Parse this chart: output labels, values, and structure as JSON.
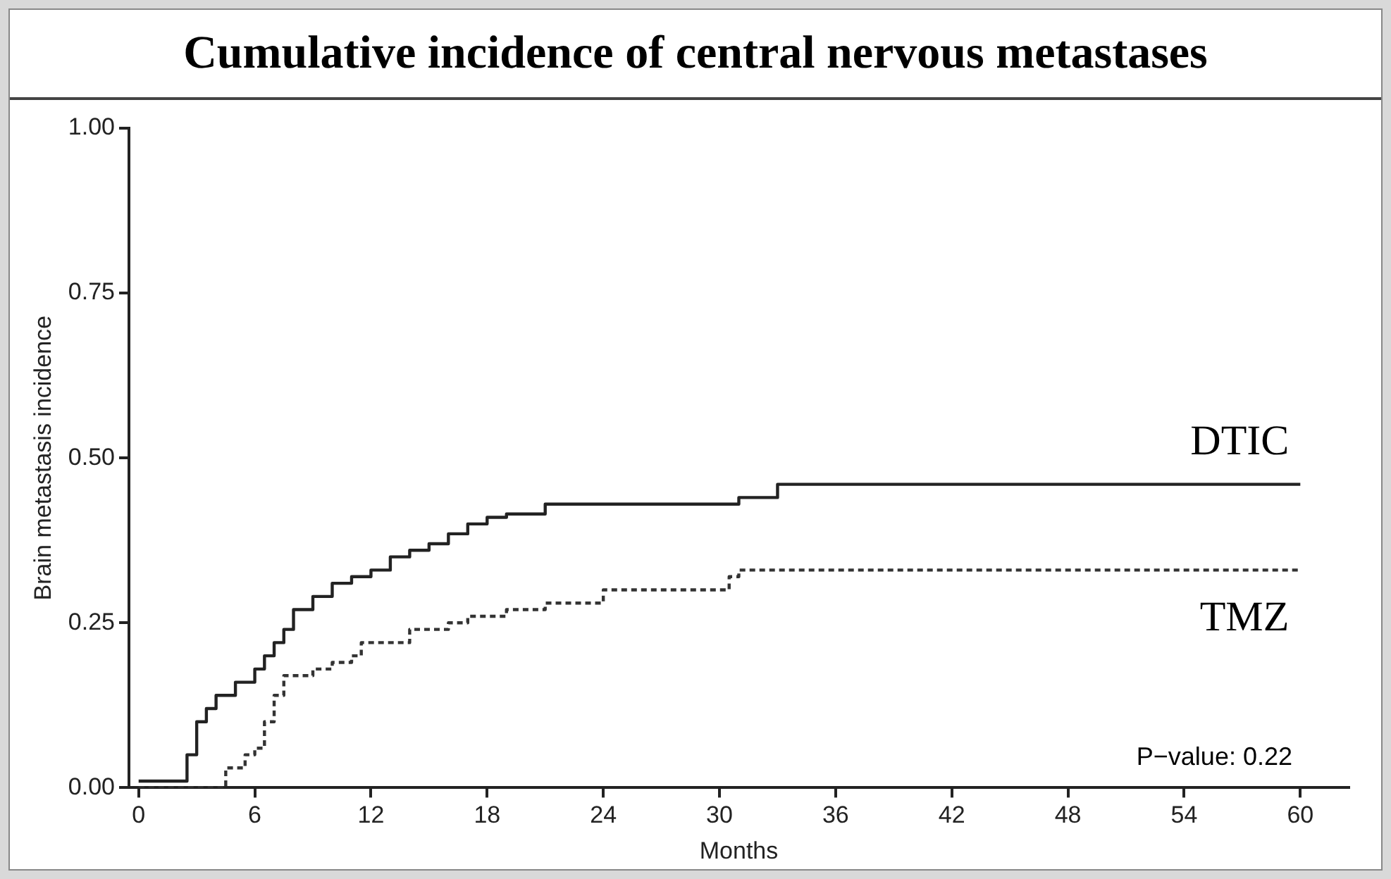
{
  "chart_data": {
    "type": "step",
    "title": "Cumulative incidence of central nervous metastases",
    "xlabel": "Months",
    "ylabel": "Brain metastasis incidence",
    "xlim": [
      -0.5,
      62.5
    ],
    "ylim": [
      0,
      1
    ],
    "xticks": [
      0,
      6,
      12,
      18,
      24,
      30,
      36,
      42,
      48,
      54,
      60
    ],
    "yticks": [
      {
        "value": 0,
        "label": "0.00"
      },
      {
        "value": 0.25,
        "label": "0.25"
      },
      {
        "value": 0.5,
        "label": "0.50"
      },
      {
        "value": 0.75,
        "label": "0.75"
      },
      {
        "value": 1,
        "label": "1.00"
      }
    ],
    "grid": false,
    "legend": false,
    "marker": "none",
    "annotations": [
      "P−value: 0.22"
    ],
    "series": [
      {
        "name": "DTIC",
        "color": "#222222",
        "line_style": "solid",
        "x": [
          0,
          2,
          2.5,
          3,
          3.5,
          4,
          5,
          6,
          6.5,
          7,
          7.5,
          8,
          9,
          10,
          11,
          12,
          13,
          14,
          15,
          16,
          17,
          18,
          19,
          21,
          31,
          33,
          60
        ],
        "values": [
          0.01,
          0.01,
          0.05,
          0.1,
          0.12,
          0.14,
          0.16,
          0.18,
          0.2,
          0.22,
          0.24,
          0.27,
          0.29,
          0.31,
          0.32,
          0.33,
          0.35,
          0.36,
          0.37,
          0.385,
          0.4,
          0.41,
          0.415,
          0.43,
          0.44,
          0.46,
          0.46
        ]
      },
      {
        "name": "TMZ",
        "color": "#333333",
        "line_style": "dashed",
        "x": [
          0,
          4,
          4.5,
          5.5,
          6,
          6.5,
          7,
          7.5,
          9,
          10,
          11,
          11.5,
          14,
          16,
          17,
          19,
          21,
          24,
          30,
          30.5,
          31,
          60
        ],
        "values": [
          0,
          0,
          0.03,
          0.05,
          0.06,
          0.1,
          0.14,
          0.17,
          0.18,
          0.19,
          0.2,
          0.22,
          0.24,
          0.25,
          0.26,
          0.27,
          0.28,
          0.3,
          0.3,
          0.32,
          0.33,
          0.33
        ]
      }
    ]
  }
}
